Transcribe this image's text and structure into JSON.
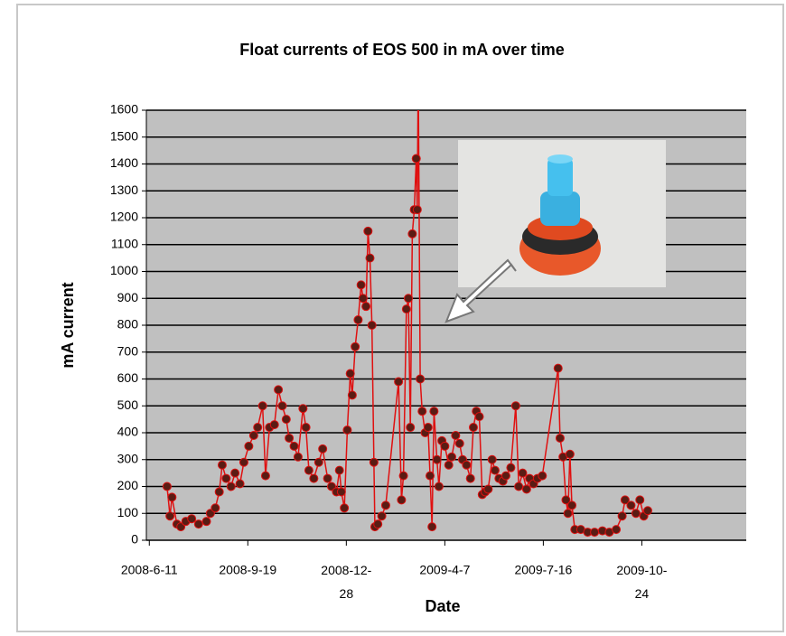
{
  "chart_data": {
    "type": "line",
    "title": "Float currents of EOS 500 in mA over time",
    "x_label": "Date",
    "y_label": "mA current",
    "x": [
      "2008-6-29",
      "2008-7-2",
      "2008-7-4",
      "2008-7-9",
      "2008-7-13",
      "2008-7-18",
      "2008-7-24",
      "2008-7-31",
      "2008-8-8",
      "2008-8-12",
      "2008-8-17",
      "2008-8-21",
      "2008-8-24",
      "2008-8-28",
      "2008-9-2",
      "2008-9-6",
      "2008-9-11",
      "2008-9-15",
      "2008-9-20",
      "2008-9-25",
      "2008-9-29",
      "2008-10-4",
      "2008-10-7",
      "2008-10-11",
      "2008-10-16",
      "2008-10-20",
      "2008-10-24",
      "2008-10-28",
      "2008-10-31",
      "2008-11-5",
      "2008-11-9",
      "2008-11-14",
      "2008-11-17",
      "2008-11-20",
      "2008-11-25",
      "2008-11-30",
      "2008-12-4",
      "2008-12-9",
      "2008-12-13",
      "2008-12-18",
      "2008-12-21",
      "2008-12-23",
      "2008-12-26",
      "2008-12-29",
      "2009-1-1",
      "2009-1-3",
      "2009-1-6",
      "2009-1-9",
      "2009-1-12",
      "2009-1-14",
      "2009-1-17",
      "2009-1-19",
      "2009-1-21",
      "2009-1-23",
      "2009-1-25",
      "2009-1-26",
      "2009-1-29",
      "2009-2-2",
      "2009-2-6",
      "2009-2-19",
      "2009-2-22",
      "2009-2-24",
      "2009-2-27",
      "2009-3-1",
      "2009-3-3",
      "2009-3-5",
      "2009-3-7",
      "2009-3-9",
      "2009-3-10",
      "2009-3-11",
      "2009-3-13",
      "2009-3-15",
      "2009-3-18",
      "2009-3-21",
      "2009-3-23",
      "2009-3-25",
      "2009-3-27",
      "2009-3-30",
      "2009-4-1",
      "2009-4-4",
      "2009-4-7",
      "2009-4-11",
      "2009-4-14",
      "2009-4-18",
      "2009-4-22",
      "2009-4-25",
      "2009-4-29",
      "2009-5-3",
      "2009-5-6",
      "2009-5-9",
      "2009-5-12",
      "2009-5-15",
      "2009-5-18",
      "2009-5-21",
      "2009-5-25",
      "2009-5-28",
      "2009-6-1",
      "2009-6-5",
      "2009-6-8",
      "2009-6-13",
      "2009-6-18",
      "2009-6-21",
      "2009-6-25",
      "2009-6-29",
      "2009-7-2",
      "2009-7-6",
      "2009-7-10",
      "2009-7-15",
      "2009-7-31",
      "2009-8-2",
      "2009-8-5",
      "2009-8-8",
      "2009-8-10",
      "2009-8-12",
      "2009-8-14",
      "2009-8-17",
      "2009-8-23",
      "2009-8-30",
      "2009-9-6",
      "2009-9-14",
      "2009-9-21",
      "2009-9-28",
      "2009-10-4",
      "2009-10-7",
      "2009-10-13",
      "2009-10-18",
      "2009-10-22",
      "2009-10-26",
      "2009-10-30"
    ],
    "values": [
      200,
      90,
      160,
      60,
      50,
      70,
      80,
      60,
      70,
      100,
      120,
      180,
      280,
      230,
      200,
      250,
      210,
      290,
      350,
      390,
      420,
      500,
      240,
      420,
      430,
      560,
      500,
      450,
      380,
      350,
      310,
      490,
      420,
      260,
      230,
      290,
      340,
      230,
      200,
      180,
      260,
      180,
      120,
      410,
      620,
      540,
      720,
      820,
      950,
      900,
      870,
      1150,
      1050,
      800,
      290,
      50,
      60,
      90,
      130,
      590,
      150,
      240,
      860,
      900,
      420,
      1140,
      1230,
      1420,
      1230,
      1750,
      600,
      480,
      400,
      420,
      240,
      50,
      480,
      300,
      200,
      370,
      350,
      280,
      310,
      390,
      360,
      300,
      280,
      230,
      420,
      480,
      460,
      170,
      180,
      190,
      300,
      260,
      230,
      220,
      240,
      270,
      500,
      200,
      250,
      190,
      230,
      210,
      230,
      240,
      640,
      380,
      310,
      150,
      100,
      320,
      130,
      40,
      40,
      30,
      30,
      35,
      30,
      40,
      90,
      150,
      130,
      100,
      150,
      90,
      110
    ],
    "color": "#e01010",
    "marker_color": "#5a1c14",
    "xlim": [
      "2008-6-8",
      "2010-2-7"
    ],
    "xticks": [
      "2008-6-11",
      "2008-9-19",
      "2008-12-28",
      "2009-4-7",
      "2009-7-16",
      "2009-10-24"
    ],
    "ylim": [
      0,
      1600
    ],
    "yticks": [
      0,
      100,
      200,
      300,
      400,
      500,
      600,
      700,
      800,
      900,
      1000,
      1100,
      1200,
      1300,
      1400,
      1500,
      1600
    ],
    "grid": true,
    "plot_background": "#c0c0c0"
  }
}
